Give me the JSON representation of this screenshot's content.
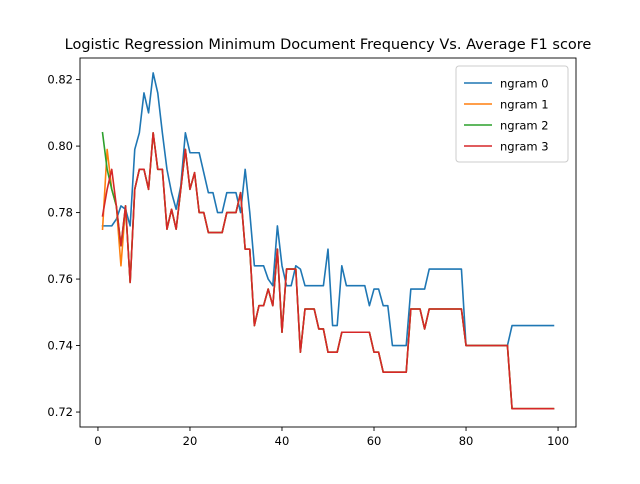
{
  "chart_data": {
    "type": "line",
    "title": "Logistic Regression Minimum Document Frequency Vs. Average F1 score",
    "xlabel": "",
    "ylabel": "",
    "xlim": [
      -3.9,
      103.9
    ],
    "ylim": [
      0.7155,
      0.8265
    ],
    "xticks": [
      0,
      20,
      40,
      60,
      80,
      100
    ],
    "yticks": [
      0.72,
      0.74,
      0.76,
      0.78,
      0.8,
      0.82
    ],
    "ytick_labels": [
      "0.72",
      "0.74",
      "0.76",
      "0.78",
      "0.80",
      "0.82"
    ],
    "grid": false,
    "legend_position": "upper-right",
    "series": [
      {
        "name": "ngram 0",
        "color": "#1f77b4",
        "x": [
          1,
          2,
          3,
          4,
          5,
          6,
          7,
          8,
          9,
          10,
          11,
          12,
          13,
          14,
          15,
          16,
          17,
          18,
          19,
          20,
          21,
          22,
          23,
          24,
          25,
          26,
          27,
          28,
          29,
          30,
          31,
          32,
          33,
          34,
          35,
          36,
          37,
          38,
          39,
          40,
          41,
          42,
          43,
          44,
          45,
          46,
          47,
          48,
          49,
          50,
          51,
          52,
          53,
          54,
          55,
          56,
          57,
          58,
          59,
          60,
          61,
          62,
          63,
          64,
          65,
          66,
          67,
          68,
          69,
          70,
          71,
          72,
          73,
          74,
          75,
          76,
          77,
          78,
          79,
          80,
          81,
          82,
          83,
          84,
          85,
          86,
          87,
          88,
          89,
          90,
          91,
          92,
          93,
          94,
          95,
          96,
          97,
          98,
          99
        ],
        "y": [
          0.776,
          0.776,
          0.776,
          0.778,
          0.782,
          0.781,
          0.776,
          0.799,
          0.804,
          0.816,
          0.81,
          0.822,
          0.816,
          0.804,
          0.793,
          0.786,
          0.781,
          0.788,
          0.804,
          0.798,
          0.798,
          0.798,
          0.792,
          0.786,
          0.786,
          0.78,
          0.78,
          0.786,
          0.786,
          0.786,
          0.78,
          0.793,
          0.78,
          0.764,
          0.764,
          0.764,
          0.76,
          0.758,
          0.776,
          0.764,
          0.758,
          0.758,
          0.764,
          0.763,
          0.758,
          0.758,
          0.758,
          0.758,
          0.758,
          0.769,
          0.746,
          0.746,
          0.764,
          0.758,
          0.758,
          0.758,
          0.758,
          0.758,
          0.752,
          0.757,
          0.757,
          0.752,
          0.752,
          0.74,
          0.74,
          0.74,
          0.74,
          0.757,
          0.757,
          0.757,
          0.757,
          0.763,
          0.763,
          0.763,
          0.763,
          0.763,
          0.763,
          0.763,
          0.763,
          0.74,
          0.74,
          0.74,
          0.74,
          0.74,
          0.74,
          0.74,
          0.74,
          0.74,
          0.74,
          0.746,
          0.746,
          0.746,
          0.746,
          0.746,
          0.746,
          0.746,
          0.746,
          0.746,
          0.746
        ]
      },
      {
        "name": "ngram 1",
        "color": "#ff7f0e",
        "x": [
          1,
          2,
          3,
          4,
          5,
          6,
          7,
          8,
          9,
          10,
          11,
          12,
          13,
          14,
          15,
          16,
          17,
          18,
          19,
          20,
          21,
          22,
          23,
          24,
          25,
          26,
          27,
          28,
          29,
          30,
          31,
          32,
          33,
          34,
          35,
          36,
          37,
          38,
          39,
          40,
          41,
          42,
          43,
          44,
          45,
          46,
          47,
          48,
          49,
          50,
          51,
          52,
          53,
          54,
          55,
          56,
          57,
          58,
          59,
          60,
          61,
          62,
          63,
          64,
          65,
          66,
          67,
          68,
          69,
          70,
          71,
          72,
          73,
          74,
          75,
          76,
          77,
          78,
          79,
          80,
          81,
          82,
          83,
          84,
          85,
          86,
          87,
          88,
          89,
          90,
          91,
          92,
          93,
          94,
          95,
          96,
          97,
          98,
          99
        ],
        "y": [
          0.775,
          0.799,
          0.787,
          0.782,
          0.764,
          0.782,
          0.759,
          0.787,
          0.793,
          0.793,
          0.787,
          0.804,
          0.793,
          0.793,
          0.775,
          0.781,
          0.775,
          0.787,
          0.799,
          0.787,
          0.792,
          0.78,
          0.78,
          0.774,
          0.774,
          0.774,
          0.774,
          0.78,
          0.78,
          0.78,
          0.786,
          0.769,
          0.769,
          0.746,
          0.752,
          0.752,
          0.757,
          0.752,
          0.769,
          0.744,
          0.763,
          0.763,
          0.763,
          0.738,
          0.751,
          0.751,
          0.751,
          0.745,
          0.745,
          0.738,
          0.738,
          0.738,
          0.744,
          0.744,
          0.744,
          0.744,
          0.744,
          0.744,
          0.744,
          0.738,
          0.738,
          0.732,
          0.732,
          0.732,
          0.732,
          0.732,
          0.732,
          0.751,
          0.751,
          0.751,
          0.745,
          0.751,
          0.751,
          0.751,
          0.751,
          0.751,
          0.751,
          0.751,
          0.751,
          0.74,
          0.74,
          0.74,
          0.74,
          0.74,
          0.74,
          0.74,
          0.74,
          0.74,
          0.74,
          0.721,
          0.721,
          0.721,
          0.721,
          0.721,
          0.721,
          0.721,
          0.721,
          0.721,
          0.721
        ]
      },
      {
        "name": "ngram 2",
        "color": "#2ca02c",
        "x": [
          1,
          2,
          3,
          4,
          5,
          6,
          7,
          8,
          9,
          10,
          11,
          12,
          13,
          14,
          15,
          16,
          17,
          18,
          19,
          20,
          21,
          22,
          23,
          24,
          25,
          26,
          27,
          28,
          29,
          30,
          31,
          32,
          33,
          34,
          35,
          36,
          37,
          38,
          39,
          40,
          41,
          42,
          43,
          44,
          45,
          46,
          47,
          48,
          49,
          50,
          51,
          52,
          53,
          54,
          55,
          56,
          57,
          58,
          59,
          60,
          61,
          62,
          63,
          64,
          65,
          66,
          67,
          68,
          69,
          70,
          71,
          72,
          73,
          74,
          75,
          76,
          77,
          78,
          79,
          80,
          81,
          82,
          83,
          84,
          85,
          86,
          87,
          88,
          89,
          90,
          91,
          92,
          93,
          94,
          95,
          96,
          97,
          98,
          99
        ],
        "y": [
          0.804,
          0.793,
          0.787,
          0.782,
          0.77,
          0.782,
          0.759,
          0.787,
          0.793,
          0.793,
          0.787,
          0.804,
          0.793,
          0.793,
          0.775,
          0.781,
          0.775,
          0.787,
          0.799,
          0.787,
          0.792,
          0.78,
          0.78,
          0.774,
          0.774,
          0.774,
          0.774,
          0.78,
          0.78,
          0.78,
          0.786,
          0.769,
          0.769,
          0.746,
          0.752,
          0.752,
          0.757,
          0.752,
          0.769,
          0.744,
          0.763,
          0.763,
          0.763,
          0.738,
          0.751,
          0.751,
          0.751,
          0.745,
          0.745,
          0.738,
          0.738,
          0.738,
          0.744,
          0.744,
          0.744,
          0.744,
          0.744,
          0.744,
          0.744,
          0.738,
          0.738,
          0.732,
          0.732,
          0.732,
          0.732,
          0.732,
          0.732,
          0.751,
          0.751,
          0.751,
          0.745,
          0.751,
          0.751,
          0.751,
          0.751,
          0.751,
          0.751,
          0.751,
          0.751,
          0.74,
          0.74,
          0.74,
          0.74,
          0.74,
          0.74,
          0.74,
          0.74,
          0.74,
          0.74,
          0.721,
          0.721,
          0.721,
          0.721,
          0.721,
          0.721,
          0.721,
          0.721,
          0.721,
          0.721
        ]
      },
      {
        "name": "ngram 3",
        "color": "#d62728",
        "x": [
          1,
          2,
          3,
          4,
          5,
          6,
          7,
          8,
          9,
          10,
          11,
          12,
          13,
          14,
          15,
          16,
          17,
          18,
          19,
          20,
          21,
          22,
          23,
          24,
          25,
          26,
          27,
          28,
          29,
          30,
          31,
          32,
          33,
          34,
          35,
          36,
          37,
          38,
          39,
          40,
          41,
          42,
          43,
          44,
          45,
          46,
          47,
          48,
          49,
          50,
          51,
          52,
          53,
          54,
          55,
          56,
          57,
          58,
          59,
          60,
          61,
          62,
          63,
          64,
          65,
          66,
          67,
          68,
          69,
          70,
          71,
          72,
          73,
          74,
          75,
          76,
          77,
          78,
          79,
          80,
          81,
          82,
          83,
          84,
          85,
          86,
          87,
          88,
          89,
          90,
          91,
          92,
          93,
          94,
          95,
          96,
          97,
          98,
          99
        ],
        "y": [
          0.779,
          0.787,
          0.793,
          0.782,
          0.77,
          0.782,
          0.759,
          0.787,
          0.793,
          0.793,
          0.787,
          0.804,
          0.793,
          0.793,
          0.775,
          0.781,
          0.775,
          0.787,
          0.799,
          0.787,
          0.792,
          0.78,
          0.78,
          0.774,
          0.774,
          0.774,
          0.774,
          0.78,
          0.78,
          0.78,
          0.786,
          0.769,
          0.769,
          0.746,
          0.752,
          0.752,
          0.757,
          0.752,
          0.769,
          0.744,
          0.763,
          0.763,
          0.763,
          0.738,
          0.751,
          0.751,
          0.751,
          0.745,
          0.745,
          0.738,
          0.738,
          0.738,
          0.744,
          0.744,
          0.744,
          0.744,
          0.744,
          0.744,
          0.744,
          0.738,
          0.738,
          0.732,
          0.732,
          0.732,
          0.732,
          0.732,
          0.732,
          0.751,
          0.751,
          0.751,
          0.745,
          0.751,
          0.751,
          0.751,
          0.751,
          0.751,
          0.751,
          0.751,
          0.751,
          0.74,
          0.74,
          0.74,
          0.74,
          0.74,
          0.74,
          0.74,
          0.74,
          0.74,
          0.74,
          0.721,
          0.721,
          0.721,
          0.721,
          0.721,
          0.721,
          0.721,
          0.721,
          0.721,
          0.721
        ]
      }
    ]
  }
}
